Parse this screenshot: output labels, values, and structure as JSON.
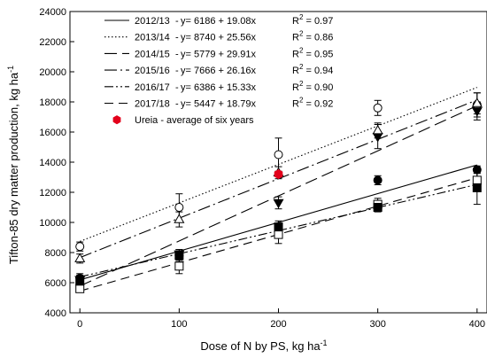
{
  "chart_data": {
    "type": "scatter",
    "xlabel": "Dose of N by PS, kg ha",
    "xlabel_sup": "-1",
    "ylabel": "Tifton-85 dry matter production, kg ha",
    "ylabel_sup": "-1",
    "xlim": [
      -10,
      410
    ],
    "ylim": [
      4000,
      24000
    ],
    "x_ticks": [
      0,
      100,
      200,
      300,
      400
    ],
    "y_ticks": [
      4000,
      6000,
      8000,
      10000,
      12000,
      14000,
      16000,
      18000,
      20000,
      22000,
      24000
    ],
    "grid": false,
    "legend_placement": "top-left",
    "series": [
      {
        "name": "2012/13",
        "equation": "y= 6186 + 19.08x",
        "r2": "0.97",
        "intercept": 6186,
        "slope": 19.08,
        "dash": "solid",
        "marker": "filled-circle",
        "x": [
          0,
          100,
          200,
          300,
          400
        ],
        "y": [
          6300,
          7800,
          9600,
          12800,
          13500
        ],
        "err": [
          300,
          300,
          300,
          300,
          250
        ]
      },
      {
        "name": "2013/14",
        "equation": "y= 8740 + 25.56x",
        "r2": "0.86",
        "intercept": 8740,
        "slope": 25.56,
        "dash": "dotted",
        "marker": "open-circle",
        "x": [
          0,
          100,
          200,
          300,
          400
        ],
        "y": [
          8400,
          11000,
          14500,
          17600,
          17800
        ],
        "err": [
          300,
          900,
          1100,
          500,
          800
        ]
      },
      {
        "name": "2014/15",
        "equation": "y= 5779 + 29.91x",
        "r2": "0.95",
        "intercept": 5779,
        "slope": 29.91,
        "dash": "long-dash",
        "marker": "filled-triangle-down",
        "x": [
          0,
          100,
          200,
          300,
          400
        ],
        "y": [
          6200,
          7900,
          11300,
          15700,
          17400
        ],
        "err": [
          300,
          300,
          400,
          800,
          600
        ]
      },
      {
        "name": "2015/16",
        "equation": "y= 7666 + 26.16x",
        "r2": "0.94",
        "intercept": 7666,
        "slope": 26.16,
        "dash": "dash-dot",
        "marker": "open-triangle-up",
        "x": [
          0,
          100,
          200,
          300,
          400
        ],
        "y": [
          7600,
          10200,
          13300,
          16100,
          17900
        ],
        "err": [
          300,
          500,
          400,
          500,
          700
        ]
      },
      {
        "name": "2016/17",
        "equation": "y= 6386 + 15.33x",
        "r2": "0.90",
        "intercept": 6386,
        "slope": 15.33,
        "dash": "dash-dot-dot",
        "marker": "open-square",
        "x": [
          0,
          100,
          200,
          300,
          400
        ],
        "y": [
          5600,
          7100,
          9200,
          11200,
          12800
        ],
        "err": [
          200,
          500,
          600,
          400,
          500
        ]
      },
      {
        "name": "2017/18",
        "equation": "y= 5447 + 18.79x",
        "r2": "0.92",
        "intercept": 5447,
        "slope": 18.79,
        "dash": "medium-dash",
        "marker": "filled-square",
        "x": [
          0,
          100,
          200,
          300,
          400
        ],
        "y": [
          6100,
          7800,
          9700,
          11000,
          12300
        ],
        "err": [
          300,
          400,
          400,
          300,
          1100
        ]
      }
    ],
    "reference_point": {
      "name": "Ureia - average of six years",
      "x": 200,
      "y": 13200,
      "color": "#e3001b"
    }
  }
}
